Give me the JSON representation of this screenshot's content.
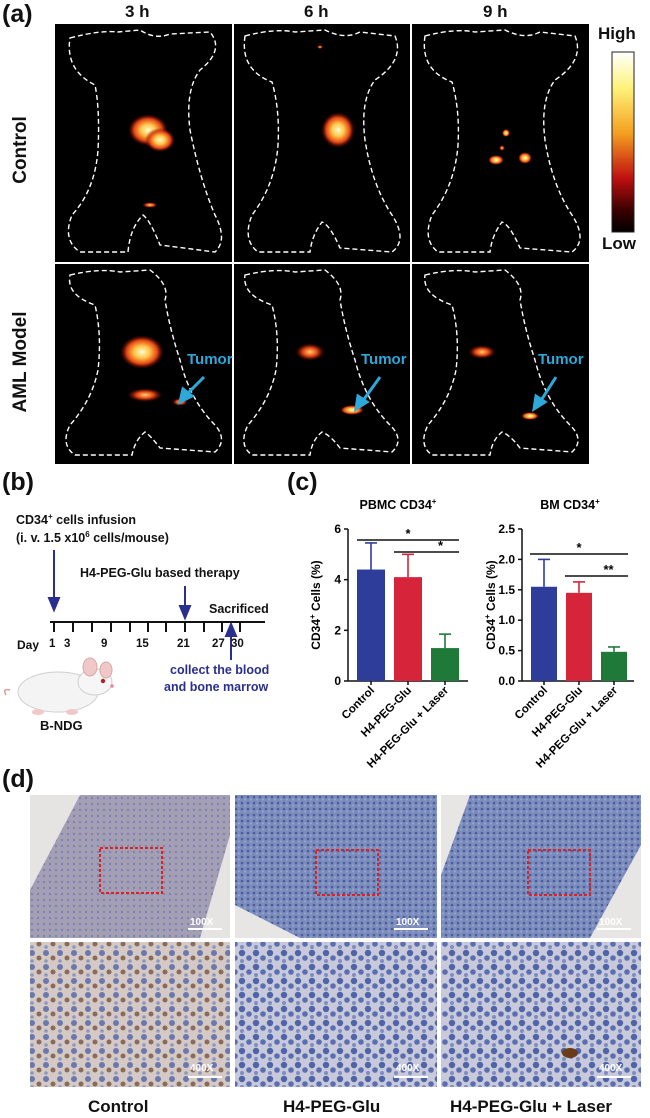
{
  "panel_a": {
    "label": "(a)",
    "time_labels": [
      "3 h",
      "6 h",
      "9 h"
    ],
    "row_labels": [
      "Control",
      "AML Model"
    ],
    "colorbar": {
      "high": "High",
      "low": "Low"
    },
    "tumor_label": "Tumor",
    "colors": {
      "tumor_arrow": "#2ea8d8",
      "outline": "#ffffff",
      "background": "#000000"
    }
  },
  "panel_b": {
    "label": "(b)",
    "infusion_line1": "CD34",
    "infusion_sup": "+",
    "infusion_line1_rest": " cells infusion",
    "infusion_line2": "(i. v. 1.5 x10",
    "infusion_line2_sup": "6",
    "infusion_line2_rest": " cells/mouse)",
    "therapy": "H4-PEG-Glu based therapy",
    "sacrificed": "Sacrificed",
    "day_label": "Day",
    "days": [
      "1",
      "3",
      "9",
      "15",
      "21",
      "27",
      "30"
    ],
    "collect_line1": "collect the blood",
    "collect_line2": "and bone marrow",
    "mouse_label": "B-NDG",
    "colors": {
      "arrow": "#2a2f8e"
    }
  },
  "panel_c": {
    "label": "(c)"
  },
  "chart_data": [
    {
      "type": "bar",
      "title": "PBMC CD34+",
      "ylabel": "CD34+ Cells (%)",
      "categories": [
        "Control",
        "H4-PEG-Glu",
        "H4-PEG-Glu + Laser"
      ],
      "values": [
        4.4,
        4.1,
        1.3
      ],
      "errors": [
        1.05,
        0.9,
        0.55
      ],
      "colors": [
        "#2e3d99",
        "#d6243a",
        "#1f7a3a"
      ],
      "ylim": [
        0,
        6
      ],
      "yticks": [
        "0",
        "2",
        "4",
        "6"
      ],
      "significance": [
        {
          "from": "Control",
          "to": "H4-PEG-Glu + Laser",
          "mark": "*"
        },
        {
          "from": "H4-PEG-Glu",
          "to": "H4-PEG-Glu + Laser",
          "mark": "*"
        }
      ]
    },
    {
      "type": "bar",
      "title": "BM CD34+",
      "ylabel": "CD34+ Cells (%)",
      "categories": [
        "Control",
        "H4-PEG-Glu",
        "H4-PEG-Glu + Laser"
      ],
      "values": [
        1.55,
        1.45,
        0.48
      ],
      "errors": [
        0.45,
        0.18,
        0.08
      ],
      "colors": [
        "#2e3d99",
        "#d6243a",
        "#1f7a3a"
      ],
      "ylim": [
        0,
        2.5
      ],
      "yticks": [
        "0.0",
        "0.5",
        "1.0",
        "1.5",
        "2.0",
        "2.5"
      ],
      "significance": [
        {
          "from": "Control",
          "to": "H4-PEG-Glu + Laser",
          "mark": "*"
        },
        {
          "from": "H4-PEG-Glu",
          "to": "H4-PEG-Glu + Laser",
          "mark": "**"
        }
      ]
    }
  ],
  "panel_d": {
    "label": "(d)",
    "magnifications": [
      "100X",
      "400X"
    ],
    "column_labels": [
      "Control",
      "H4-PEG-Glu",
      "H4-PEG-Glu + Laser"
    ],
    "colors": {
      "roi": "#e02020",
      "tissue_blue": "#5f74ad",
      "tissue_light": "#c9cbd6"
    }
  }
}
